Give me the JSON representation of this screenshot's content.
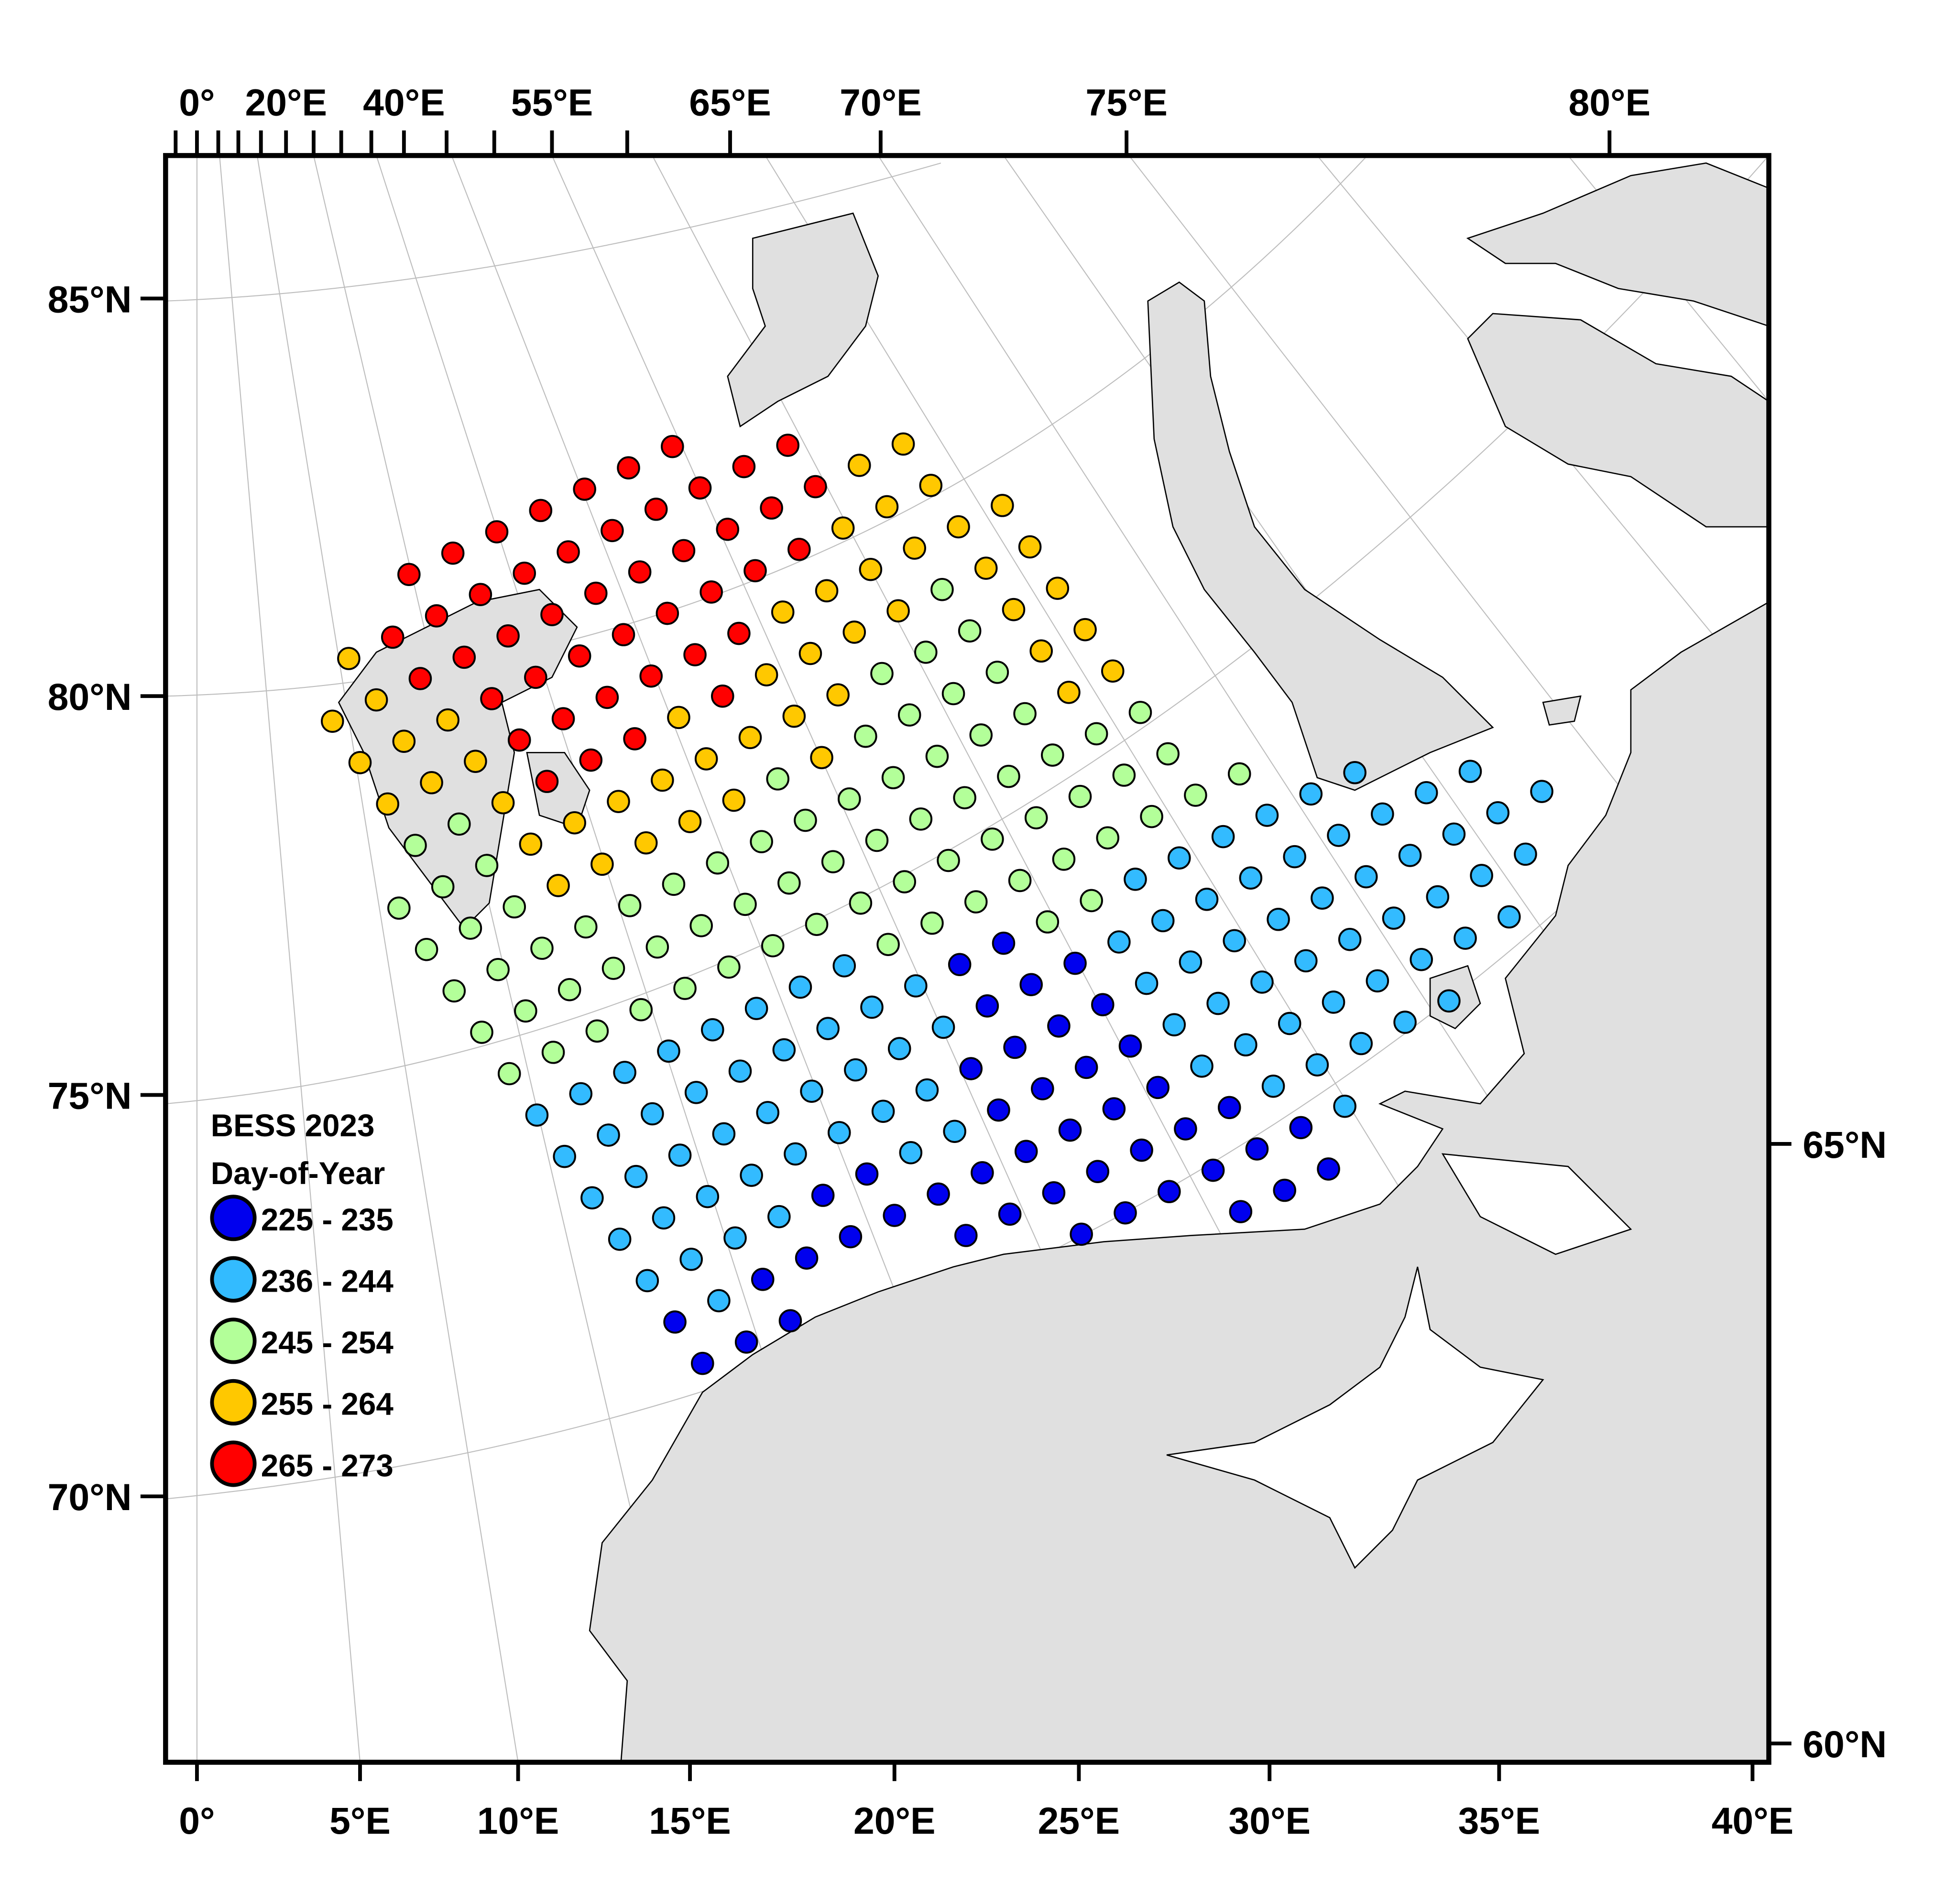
{
  "legend": {
    "title_line1": "BESS 2023",
    "title_line2": "Day-of-Year",
    "entries": [
      {
        "label": "225 - 235",
        "color": "#0000ee"
      },
      {
        "label": "236 - 244",
        "color": "#33bbff"
      },
      {
        "label": "245 - 254",
        "color": "#b3ff99"
      },
      {
        "label": "255 - 264",
        "color": "#ffc800"
      },
      {
        "label": "265 - 273",
        "color": "#ff0000"
      }
    ]
  },
  "axes": {
    "bottom": [
      "0°",
      "5°E",
      "10°E",
      "15°E",
      "20°E",
      "25°E",
      "30°E",
      "35°E",
      "40°E"
    ],
    "top": [
      "0°",
      "20°E",
      "40°E",
      "55°E",
      "65°E",
      "70°E",
      "75°E",
      "80°E"
    ],
    "left": [
      "85°N",
      "80°N",
      "75°N",
      "70°N"
    ],
    "right": [
      "65°N",
      "60°N"
    ]
  },
  "colors": {
    "land": "#e0e0e0",
    "graticule": "#bdbdbd",
    "frame": "#000000"
  }
}
